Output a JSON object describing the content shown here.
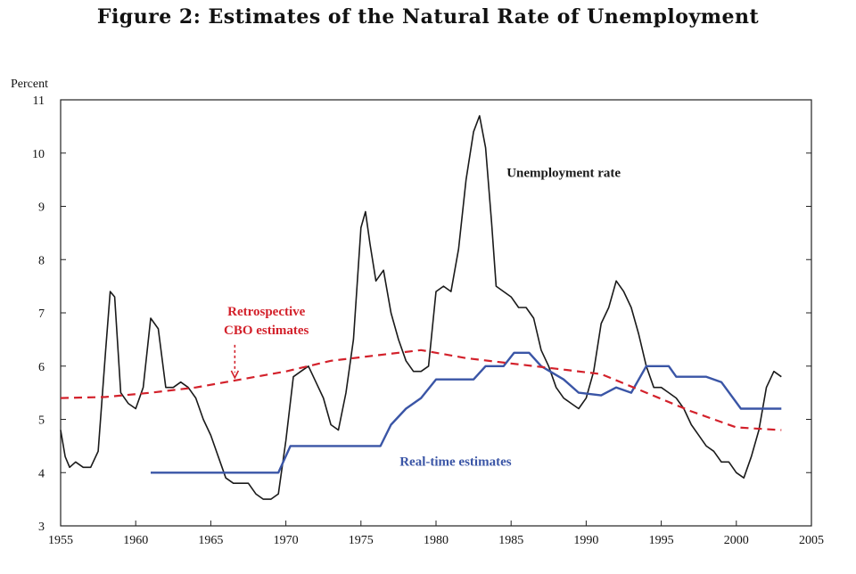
{
  "chart_data": {
    "type": "line",
    "title": "Figure 2:  Estimates of the Natural Rate of Unemployment",
    "ylabel": "Percent",
    "xlabel": "",
    "xlim": [
      1955,
      2005
    ],
    "ylim": [
      3,
      11
    ],
    "x_ticks": [
      "1955",
      "1960",
      "1965",
      "1970",
      "1975",
      "1980",
      "1985",
      "1990",
      "1995",
      "2000",
      "2005"
    ],
    "y_ticks": [
      "3",
      "4",
      "5",
      "6",
      "7",
      "8",
      "9",
      "10",
      "11"
    ],
    "grid": false,
    "series": [
      {
        "name": "Unemployment rate",
        "color": "#1a1a1a",
        "style": "solid",
        "x": [
          1955,
          1955.3,
          1955.6,
          1956,
          1956.5,
          1957,
          1957.5,
          1958,
          1958.3,
          1958.6,
          1959,
          1959.5,
          1960,
          1960.5,
          1961,
          1961.5,
          1962,
          1962.5,
          1963,
          1963.5,
          1964,
          1964.5,
          1965,
          1965.5,
          1966,
          1966.5,
          1967,
          1967.5,
          1968,
          1968.5,
          1969,
          1969.5,
          1970,
          1970.5,
          1971,
          1971.5,
          1972,
          1972.5,
          1973,
          1973.5,
          1974,
          1974.5,
          1975,
          1975.3,
          1975.6,
          1976,
          1976.5,
          1977,
          1977.5,
          1978,
          1978.5,
          1979,
          1979.5,
          1980,
          1980.5,
          1981,
          1981.5,
          1982,
          1982.5,
          1982.9,
          1983.3,
          1983.7,
          1984,
          1984.5,
          1985,
          1985.5,
          1986,
          1986.5,
          1987,
          1987.5,
          1988,
          1988.5,
          1989,
          1989.5,
          1990,
          1990.5,
          1991,
          1991.5,
          1992,
          1992.5,
          1993,
          1993.5,
          1994,
          1994.5,
          1995,
          1995.5,
          1996,
          1996.5,
          1997,
          1997.5,
          1998,
          1998.5,
          1999,
          1999.5,
          2000,
          2000.5,
          2001,
          2001.5,
          2002,
          2002.5,
          2003
        ],
        "values": [
          4.8,
          4.3,
          4.1,
          4.2,
          4.1,
          4.1,
          4.4,
          6.3,
          7.4,
          7.3,
          5.5,
          5.3,
          5.2,
          5.6,
          6.9,
          6.7,
          5.6,
          5.6,
          5.7,
          5.6,
          5.4,
          5.0,
          4.7,
          4.3,
          3.9,
          3.8,
          3.8,
          3.8,
          3.6,
          3.5,
          3.5,
          3.6,
          4.6,
          5.8,
          5.9,
          6.0,
          5.7,
          5.4,
          4.9,
          4.8,
          5.5,
          6.5,
          8.6,
          8.9,
          8.3,
          7.6,
          7.8,
          7.0,
          6.5,
          6.1,
          5.9,
          5.9,
          6.0,
          7.4,
          7.5,
          7.4,
          8.2,
          9.5,
          10.4,
          10.7,
          10.1,
          8.7,
          7.5,
          7.4,
          7.3,
          7.1,
          7.1,
          6.9,
          6.3,
          6.0,
          5.6,
          5.4,
          5.3,
          5.2,
          5.4,
          5.9,
          6.8,
          7.1,
          7.6,
          7.4,
          7.1,
          6.6,
          6.0,
          5.6,
          5.6,
          5.5,
          5.4,
          5.2,
          4.9,
          4.7,
          4.5,
          4.4,
          4.2,
          4.2,
          4.0,
          3.9,
          4.3,
          4.8,
          5.6,
          5.9,
          5.8
        ]
      },
      {
        "name": "Real-time estimates",
        "color": "#3a55a6",
        "style": "solid",
        "x": [
          1961,
          1969.5,
          1970.3,
          1976.3,
          1977,
          1978,
          1979,
          1980,
          1982.5,
          1983.3,
          1984.5,
          1985.2,
          1986.2,
          1987,
          1988.5,
          1989.5,
          1991,
          1992,
          1993,
          1994,
          1994.7,
          1995.5,
          1996,
          1998,
          1999,
          2000.3,
          2003
        ],
        "values": [
          4.0,
          4.0,
          4.5,
          4.5,
          4.9,
          5.2,
          5.4,
          5.75,
          5.75,
          6.0,
          6.0,
          6.25,
          6.25,
          6.0,
          5.75,
          5.5,
          5.45,
          5.6,
          5.5,
          6.0,
          6.0,
          6.0,
          5.8,
          5.8,
          5.7,
          5.2,
          5.2
        ]
      },
      {
        "name": "Retrospective CBO estimates",
        "color": "#d3212b",
        "style": "dashed",
        "x": [
          1955,
          1958,
          1961,
          1964,
          1967,
          1970,
          1973,
          1976,
          1979,
          1982,
          1985,
          1988,
          1991,
          1994,
          1997,
          2000,
          2003
        ],
        "values": [
          5.4,
          5.42,
          5.5,
          5.6,
          5.75,
          5.9,
          6.1,
          6.2,
          6.3,
          6.15,
          6.05,
          5.95,
          5.85,
          5.5,
          5.15,
          4.85,
          4.8
        ]
      }
    ],
    "annotations": [
      {
        "text": "Unemployment rate",
        "x": 1988.5,
        "y": 9.55,
        "color": "#1a1a1a"
      },
      {
        "text": "Retrospective",
        "x": 1968.7,
        "y": 6.95,
        "color": "#d3212b"
      },
      {
        "text": "CBO estimates",
        "x": 1968.7,
        "y": 6.6,
        "color": "#d3212b"
      },
      {
        "text": "Real-time estimates",
        "x": 1981.3,
        "y": 4.13,
        "color": "#3a55a6"
      }
    ],
    "arrow": {
      "from_x": 1966.6,
      "from_y": 6.4,
      "to_x": 1966.6,
      "to_y": 5.78,
      "color": "#d3212b"
    }
  }
}
